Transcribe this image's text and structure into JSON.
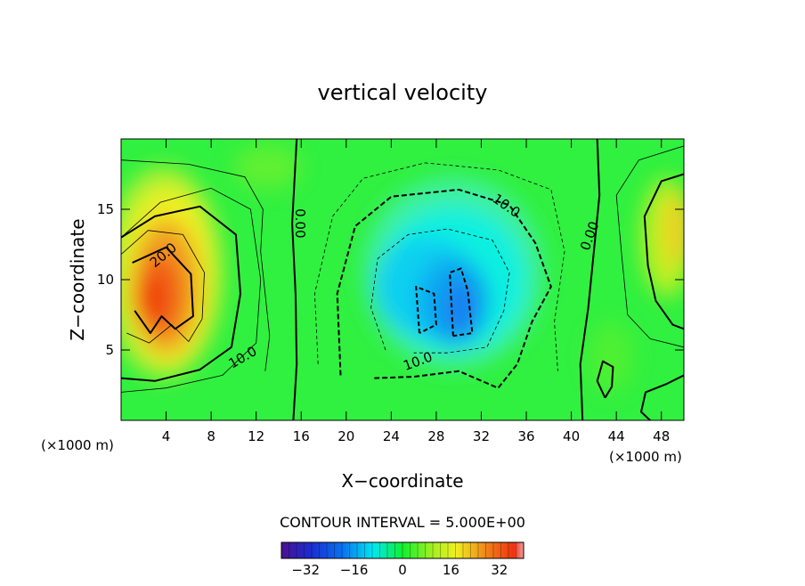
{
  "chart_data": {
    "type": "heatmap",
    "title": "vertical velocity",
    "xlabel": "X−coordinate",
    "ylabel": "Z−coordinate",
    "x_unit": "(×1000 m)",
    "z_unit": "(×1000 m)",
    "xlim": [
      0,
      50
    ],
    "ylim": [
      0,
      20
    ],
    "x_ticks": [
      4,
      8,
      12,
      16,
      20,
      24,
      28,
      32,
      36,
      40,
      44,
      48
    ],
    "x_tick_labels": [
      "4",
      "8",
      "12",
      "16",
      "20",
      "24",
      "28",
      "32",
      "36",
      "40",
      "44",
      "48"
    ],
    "y_ticks": [
      5,
      10,
      15
    ],
    "y_tick_labels": [
      "5",
      "10",
      "15"
    ],
    "contour_interval_text": "CONTOUR INTERVAL = 5.000E+00",
    "colorbar": {
      "range": [
        -40,
        40
      ],
      "ticks": [
        -32,
        -16,
        0,
        16,
        32
      ],
      "tick_labels": [
        "−32",
        "−16",
        "0",
        "16",
        "32"
      ]
    },
    "contour_labels": [
      {
        "text": "20.0",
        "x": 4,
        "z": 11.5
      },
      {
        "text": "10.0",
        "x": 11,
        "z": 4.2
      },
      {
        "text": "0.00",
        "x": 15.5,
        "z": 14
      },
      {
        "text": "10.0",
        "x": 34,
        "z": 15
      },
      {
        "text": "10.0",
        "x": 26.5,
        "z": 3.9
      },
      {
        "text": "0.00",
        "x": 42,
        "z": 13
      }
    ],
    "features": [
      {
        "name": "updraft",
        "x": 4,
        "z": 8.5,
        "peak_w": 30
      },
      {
        "name": "downdraft",
        "x": 29,
        "z": 8,
        "peak_w": -22
      },
      {
        "name": "updraft",
        "x": 49.5,
        "z": 13.5,
        "peak_w": 18
      }
    ]
  }
}
